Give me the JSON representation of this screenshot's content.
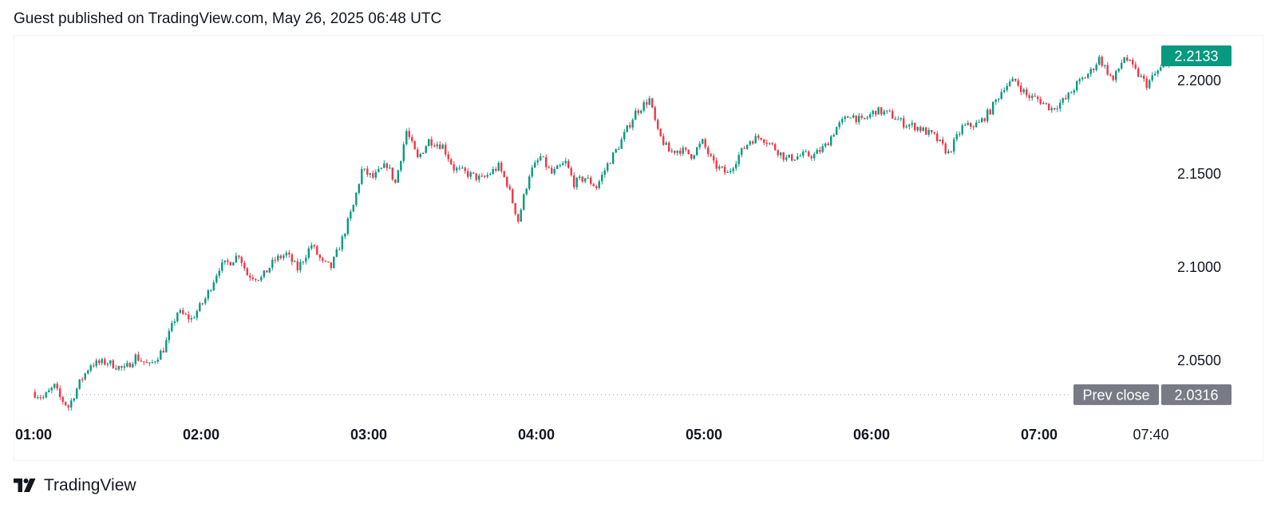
{
  "header": {
    "text": "Guest published on TradingView.com, May 26, 2025 06:48 UTC"
  },
  "footer": {
    "brand": "TradingView",
    "logo_icon": "tradingview-logo-icon"
  },
  "colors": {
    "up": "#089981",
    "down": "#f23645",
    "last_price_bg": "#089981",
    "prev_close_bg": "#787b86",
    "dotted_line": "#9598a1",
    "text": "#131722"
  },
  "chart_data": {
    "type": "candlestick",
    "timeframe_minutes": 1,
    "x_ticks": [
      {
        "label": "01:00",
        "bold": true
      },
      {
        "label": "02:00",
        "bold": true
      },
      {
        "label": "03:00",
        "bold": true
      },
      {
        "label": "04:00",
        "bold": true
      },
      {
        "label": "05:00",
        "bold": true
      },
      {
        "label": "06:00",
        "bold": true
      },
      {
        "label": "07:00",
        "bold": true
      },
      {
        "label": "07:40",
        "bold": false
      }
    ],
    "y_ticks": [
      "2.2000",
      "2.1500",
      "2.1000",
      "2.0500"
    ],
    "ylim": [
      2.02,
      2.224
    ],
    "last_price": {
      "value": 2.2133,
      "label": "2.2133"
    },
    "prev_close": {
      "value": 2.0316,
      "label": "2.0316",
      "caption": "Prev close"
    },
    "xlim": [
      "00:59",
      "08:03"
    ],
    "path": [
      [
        "01:00",
        2.033
      ],
      [
        "01:04",
        2.03
      ],
      [
        "01:08",
        2.036
      ],
      [
        "01:10",
        2.03
      ],
      [
        "01:13",
        2.025
      ],
      [
        "01:17",
        2.038
      ],
      [
        "01:21",
        2.048
      ],
      [
        "01:27",
        2.049
      ],
      [
        "01:33",
        2.045
      ],
      [
        "01:37",
        2.052
      ],
      [
        "01:42",
        2.047
      ],
      [
        "01:47",
        2.056
      ],
      [
        "01:52",
        2.076
      ],
      [
        "01:57",
        2.072
      ],
      [
        "02:02",
        2.083
      ],
      [
        "02:07",
        2.1
      ],
      [
        "02:11",
        2.103
      ],
      [
        "02:14",
        2.107
      ],
      [
        "02:17",
        2.096
      ],
      [
        "02:22",
        2.094
      ],
      [
        "02:27",
        2.104
      ],
      [
        "02:31",
        2.107
      ],
      [
        "02:35",
        2.099
      ],
      [
        "02:40",
        2.112
      ],
      [
        "02:44",
        2.102
      ],
      [
        "02:47",
        2.1
      ],
      [
        "02:51",
        2.115
      ],
      [
        "02:55",
        2.133
      ],
      [
        "02:58",
        2.152
      ],
      [
        "03:02",
        2.148
      ],
      [
        "03:07",
        2.155
      ],
      [
        "03:10",
        2.145
      ],
      [
        "03:14",
        2.173
      ],
      [
        "03:18",
        2.158
      ],
      [
        "03:22",
        2.168
      ],
      [
        "03:27",
        2.165
      ],
      [
        "03:31",
        2.153
      ],
      [
        "03:36",
        2.15
      ],
      [
        "03:41",
        2.147
      ],
      [
        "03:47",
        2.154
      ],
      [
        "03:50",
        2.145
      ],
      [
        "03:52",
        2.135
      ],
      [
        "03:54",
        2.125
      ],
      [
        "03:58",
        2.15
      ],
      [
        "04:02",
        2.159
      ],
      [
        "04:06",
        2.15
      ],
      [
        "04:11",
        2.156
      ],
      [
        "04:14",
        2.145
      ],
      [
        "04:18",
        2.148
      ],
      [
        "04:22",
        2.143
      ],
      [
        "04:26",
        2.155
      ],
      [
        "04:30",
        2.165
      ],
      [
        "04:36",
        2.183
      ],
      [
        "04:41",
        2.19
      ],
      [
        "04:44",
        2.172
      ],
      [
        "04:48",
        2.162
      ],
      [
        "04:52",
        2.163
      ],
      [
        "04:56",
        2.16
      ],
      [
        "05:00",
        2.167
      ],
      [
        "05:04",
        2.155
      ],
      [
        "05:09",
        2.15
      ],
      [
        "05:13",
        2.16
      ],
      [
        "05:17",
        2.168
      ],
      [
        "05:21",
        2.17
      ],
      [
        "05:25",
        2.165
      ],
      [
        "05:30",
        2.158
      ],
      [
        "05:36",
        2.16
      ],
      [
        "05:40",
        2.16
      ],
      [
        "05:44",
        2.165
      ],
      [
        "05:48",
        2.175
      ],
      [
        "05:53",
        2.182
      ],
      [
        "05:57",
        2.178
      ],
      [
        "06:02",
        2.184
      ],
      [
        "06:07",
        2.182
      ],
      [
        "06:12",
        2.177
      ],
      [
        "06:17",
        2.175
      ],
      [
        "06:23",
        2.17
      ],
      [
        "06:28",
        2.161
      ],
      [
        "06:33",
        2.175
      ],
      [
        "06:39",
        2.177
      ],
      [
        "06:43",
        2.184
      ],
      [
        "06:48",
        2.197
      ],
      [
        "06:52",
        2.2
      ],
      [
        "06:56",
        2.192
      ],
      [
        "07:00",
        2.19
      ],
      [
        "07:05",
        2.185
      ],
      [
        "07:10",
        2.19
      ],
      [
        "07:14",
        2.198
      ],
      [
        "07:19",
        2.205
      ],
      [
        "07:22",
        2.212
      ],
      [
        "07:27",
        2.2
      ],
      [
        "07:31",
        2.213
      ],
      [
        "07:35",
        2.205
      ],
      [
        "07:39",
        2.198
      ],
      [
        "07:43",
        2.205
      ],
      [
        "07:47",
        2.21
      ],
      [
        "07:51",
        2.213
      ]
    ]
  }
}
